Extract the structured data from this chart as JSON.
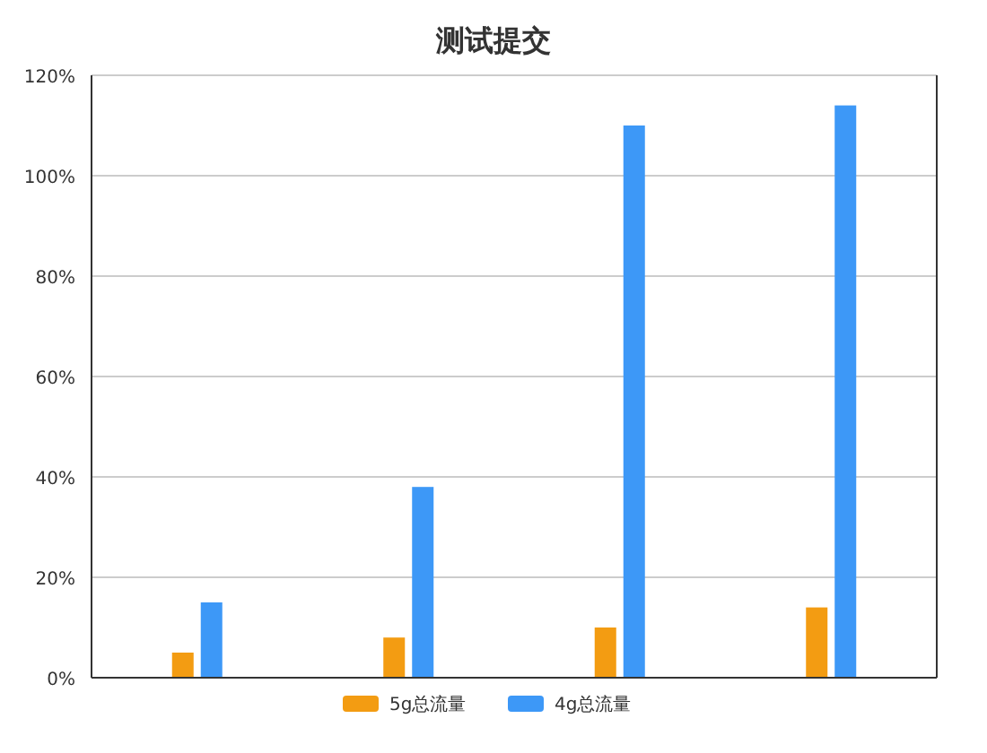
{
  "chart_data": {
    "type": "bar",
    "title": "测试提交",
    "categories": [
      null,
      null,
      null,
      null
    ],
    "series": [
      {
        "name": "5g总流量",
        "color": "#f39c12",
        "values": [
          5,
          8,
          10,
          14
        ]
      },
      {
        "name": "4g总流量",
        "color": "#3d98f7",
        "values": [
          15,
          38,
          110,
          114
        ]
      }
    ],
    "ylim": [
      0,
      120
    ],
    "yticks": [
      {
        "value": 0,
        "label": "0%"
      },
      {
        "value": 20,
        "label": "20%"
      },
      {
        "value": 40,
        "label": "40%"
      },
      {
        "value": 60,
        "label": "60%"
      },
      {
        "value": 80,
        "label": "80%"
      },
      {
        "value": 100,
        "label": "100%"
      },
      {
        "value": 120,
        "label": "120%"
      }
    ],
    "grid": "y",
    "legend": "bottom"
  }
}
